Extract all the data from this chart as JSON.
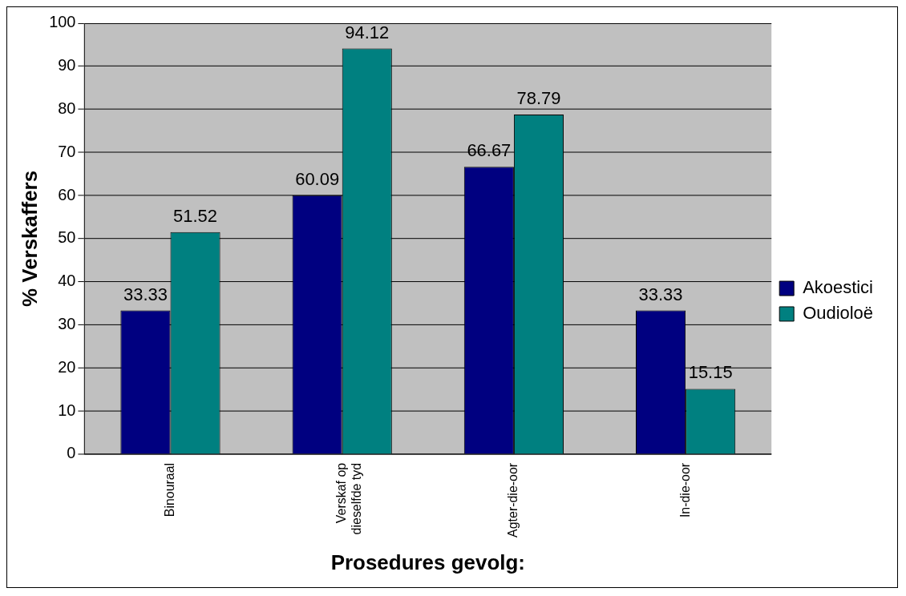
{
  "chart_data": {
    "type": "bar",
    "xlabel": "Prosedures gevolg:",
    "ylabel": "% Verskaffers",
    "categories": [
      "Binouraal",
      "Verskaf op dieselfde tyd",
      "Agter-die-oor",
      "In-die-oor"
    ],
    "series": [
      {
        "name": "Akoestici",
        "color": "#000080",
        "values": [
          33.33,
          60.09,
          66.67,
          33.33
        ]
      },
      {
        "name": "Oudioloë",
        "color": "#008080",
        "values": [
          51.52,
          94.12,
          78.79,
          15.15
        ]
      }
    ],
    "ylim": [
      0,
      100
    ],
    "yticks": [
      0,
      10,
      20,
      30,
      40,
      50,
      60,
      70,
      80,
      90,
      100
    ],
    "grid": "y",
    "legend": "right",
    "data_labels": true
  }
}
